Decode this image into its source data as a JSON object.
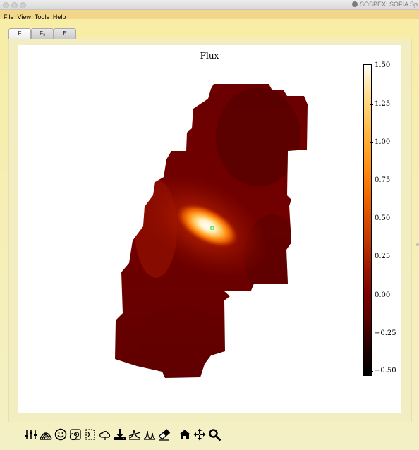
{
  "window": {
    "title": "SOSPEX: SOFIA Sp"
  },
  "menu": {
    "items": [
      "File",
      "View",
      "Tools",
      "Help"
    ]
  },
  "tabs": [
    {
      "label": "F",
      "active": true
    },
    {
      "label": "Fₐ",
      "active": false
    },
    {
      "label": "E",
      "active": false
    }
  ],
  "plot": {
    "title": "Flux",
    "colormap": "gist_heat",
    "colorbar": {
      "range": [
        -0.5,
        1.5
      ],
      "ticks": [
        "1.50",
        "1.25",
        "1.00",
        "0.75",
        "0.50",
        "0.25",
        "0.00",
        "−0.25",
        "−0.50"
      ]
    }
  },
  "toolbar": {
    "icons": [
      "sliders-icon",
      "contour-icon",
      "smiley-icon",
      "spiral-icon",
      "note-icon",
      "cloud-icon",
      "download-icon",
      "line-fit-icon",
      "peak-fit-icon",
      "eraser-icon",
      "home-icon",
      "pan-icon",
      "zoom-icon"
    ]
  }
}
